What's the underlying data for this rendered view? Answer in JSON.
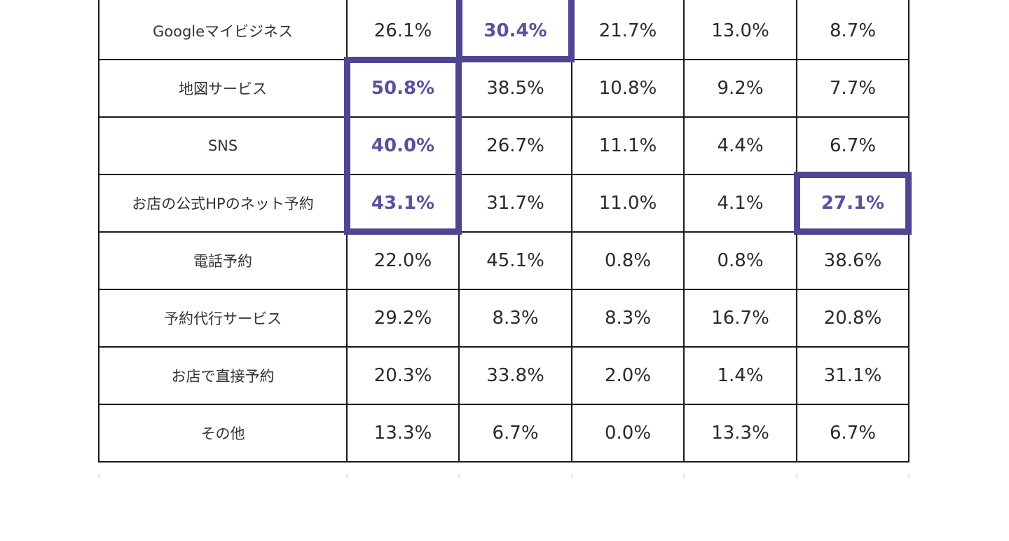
{
  "colors": {
    "highlight": "#4f4692",
    "highlight_text": "#5c4f9f",
    "grid": "#1a1a1a"
  },
  "chart_data": {
    "type": "table",
    "rows": [
      {
        "label": "Googleマイビジネス",
        "values": [
          "26.1%",
          "30.4%",
          "21.7%",
          "13.0%",
          "8.7%"
        ]
      },
      {
        "label": "地図サービス",
        "values": [
          "50.8%",
          "38.5%",
          "10.8%",
          "9.2%",
          "7.7%"
        ]
      },
      {
        "label": "SNS",
        "values": [
          "40.0%",
          "26.7%",
          "11.1%",
          "4.4%",
          "6.7%"
        ]
      },
      {
        "label": "お店の公式HPのネット予約",
        "values": [
          "43.1%",
          "31.7%",
          "11.0%",
          "4.1%",
          "27.1%"
        ]
      },
      {
        "label": "電話予約",
        "values": [
          "22.0%",
          "45.1%",
          "0.8%",
          "0.8%",
          "38.6%"
        ]
      },
      {
        "label": "予約代行サービス",
        "values": [
          "29.2%",
          "8.3%",
          "8.3%",
          "16.7%",
          "20.8%"
        ]
      },
      {
        "label": "お店で直接予約",
        "values": [
          "20.3%",
          "33.8%",
          "2.0%",
          "1.4%",
          "31.1%"
        ]
      },
      {
        "label": "その他",
        "values": [
          "13.3%",
          "6.7%",
          "0.0%",
          "13.3%",
          "6.7%"
        ]
      }
    ],
    "highlighted_cells": [
      {
        "row": 0,
        "col": 1
      },
      {
        "row": 1,
        "col": 0
      },
      {
        "row": 2,
        "col": 0
      },
      {
        "row": 3,
        "col": 0
      },
      {
        "row": 3,
        "col": 4
      }
    ]
  }
}
